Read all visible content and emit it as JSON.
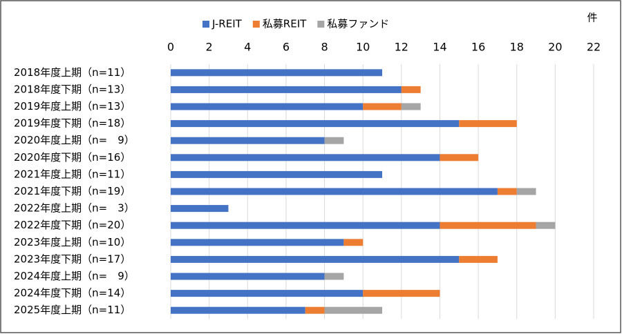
{
  "chart_data": {
    "type": "stacked-barh",
    "unit_label": "件",
    "categories": [
      "2018年度上期（n=11）",
      "2018年度下期（n=13）",
      "2019年度上期（n=13）",
      "2019年度下期（n=18）",
      "2020年度上期（n=　9）",
      "2020年度下期（n=16）",
      "2021年度上期（n=11）",
      "2021年度下期（n=19）",
      "2022年度上期（n=　3）",
      "2022年度下期（n=20）",
      "2023年度上期（n=10）",
      "2023年度下期（n=17）",
      "2024年度上期（n=　9）",
      "2024年度下期（n=14）",
      "2025年度上期（n=11）"
    ],
    "series": [
      {
        "name": "J-REIT",
        "color": "#4472c4",
        "values": [
          11,
          12,
          10,
          15,
          8,
          14,
          11,
          17,
          3,
          14,
          9,
          15,
          8,
          10,
          7
        ]
      },
      {
        "name": "私募REIT",
        "color": "#ed7d31",
        "values": [
          0,
          1,
          2,
          3,
          0,
          2,
          0,
          1,
          0,
          5,
          1,
          2,
          0,
          4,
          1
        ]
      },
      {
        "name": "私募ファンド",
        "color": "#a5a5a5",
        "values": [
          0,
          0,
          1,
          0,
          1,
          0,
          0,
          1,
          0,
          1,
          0,
          0,
          1,
          0,
          3
        ]
      }
    ],
    "xlim": [
      0,
      22
    ],
    "xticks": [
      0,
      2,
      4,
      6,
      8,
      10,
      12,
      14,
      16,
      18,
      20,
      22
    ],
    "grid": true
  }
}
